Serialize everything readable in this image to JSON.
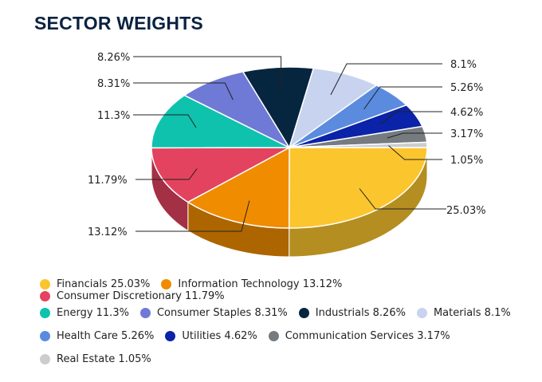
{
  "chart_data": {
    "type": "pie",
    "title": "SECTOR WEIGHTS",
    "slices": [
      {
        "label": "Financials",
        "value": 25.03,
        "value_label": "25.03%",
        "legend": "Financials 25.03%",
        "color": "#fbc52e"
      },
      {
        "label": "Information Technology",
        "value": 13.12,
        "value_label": "13.12%",
        "legend": "Information Technology 13.12%",
        "color": "#f08c00"
      },
      {
        "label": "Consumer Discretionary",
        "value": 11.79,
        "value_label": "11.79%",
        "legend": "Consumer Discretionary 11.79%",
        "color": "#e3435e"
      },
      {
        "label": "Energy",
        "value": 11.3,
        "value_label": "11.3%",
        "legend": "Energy 11.3%",
        "color": "#0ec2ae"
      },
      {
        "label": "Consumer Staples",
        "value": 8.31,
        "value_label": "8.31%",
        "legend": "Consumer Staples 8.31%",
        "color": "#6f79d6"
      },
      {
        "label": "Industrials",
        "value": 8.26,
        "value_label": "8.26%",
        "legend": "Industrials 8.26%",
        "color": "#06263f"
      },
      {
        "label": "Materials",
        "value": 8.1,
        "value_label": "8.1%",
        "legend": "Materials 8.1%",
        "color": "#c8d3ef"
      },
      {
        "label": "Health Care",
        "value": 5.26,
        "value_label": "5.26%",
        "legend": "Health Care 5.26%",
        "color": "#5b8bdf"
      },
      {
        "label": "Utilities",
        "value": 4.62,
        "value_label": "4.62%",
        "legend": "Utilities 4.62%",
        "color": "#0b23a8"
      },
      {
        "label": "Communication Services",
        "value": 3.17,
        "value_label": "3.17%",
        "legend": "Communication Services 3.17%",
        "color": "#767b80"
      },
      {
        "label": "Real Estate",
        "value": 1.05,
        "value_label": "1.05%",
        "legend": "Real Estate 1.05%",
        "color": "#cdcdcd"
      }
    ],
    "legend_position": "bottom"
  }
}
